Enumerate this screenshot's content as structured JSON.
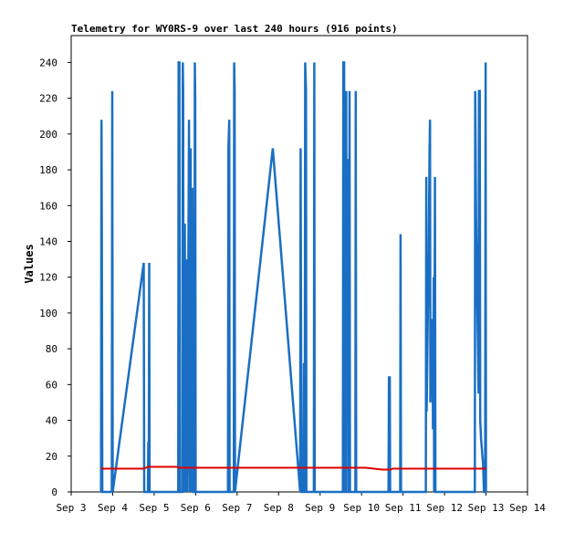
{
  "chart_data": {
    "type": "line",
    "title": "Telemetry for WY0RS-9 over last 240 hours (916 points)",
    "xlabel": "",
    "ylabel": "Values",
    "x_categories": [
      "Sep 3",
      "Sep 4",
      "Sep 5",
      "Sep 6",
      "Sep 7",
      "Sep 8",
      "Sep 9",
      "Sep 10",
      "Sep 11",
      "Sep 12",
      "Sep 13",
      "Sep 14"
    ],
    "xlim": [
      0,
      11
    ],
    "ylim": [
      0,
      255
    ],
    "y_ticks": [
      0,
      20,
      40,
      60,
      80,
      100,
      120,
      140,
      160,
      180,
      200,
      220,
      240
    ],
    "grid": false,
    "legend": "none",
    "series": [
      {
        "color": "#1a6fc4",
        "points": [
          [
            0.72,
            0
          ],
          [
            0.73,
            208
          ],
          [
            0.74,
            145
          ],
          [
            0.75,
            0
          ],
          [
            0.98,
            0
          ],
          [
            0.99,
            224
          ],
          [
            1.0,
            0
          ],
          [
            1.75,
            128
          ],
          [
            1.76,
            0
          ],
          [
            1.85,
            0
          ],
          [
            1.86,
            28
          ],
          [
            1.87,
            0
          ],
          [
            1.88,
            128
          ],
          [
            1.89,
            0
          ],
          [
            2.58,
            0
          ],
          [
            2.59,
            240
          ],
          [
            2.61,
            240
          ],
          [
            2.62,
            0
          ],
          [
            2.68,
            0
          ],
          [
            2.69,
            240
          ],
          [
            2.7,
            224
          ],
          [
            2.71,
            0
          ],
          [
            2.74,
            150
          ],
          [
            2.76,
            0
          ],
          [
            2.78,
            130
          ],
          [
            2.8,
            0
          ],
          [
            2.84,
            208
          ],
          [
            2.86,
            0
          ],
          [
            2.88,
            192
          ],
          [
            2.9,
            0
          ],
          [
            2.92,
            170
          ],
          [
            2.94,
            0
          ],
          [
            2.97,
            0
          ],
          [
            2.98,
            240
          ],
          [
            2.99,
            220
          ],
          [
            3.0,
            0
          ],
          [
            3.78,
            0
          ],
          [
            3.79,
            192
          ],
          [
            3.81,
            208
          ],
          [
            3.82,
            0
          ],
          [
            3.92,
            0
          ],
          [
            3.93,
            240
          ],
          [
            3.94,
            224
          ],
          [
            3.95,
            0
          ],
          [
            4.86,
            192
          ],
          [
            5.52,
            0
          ],
          [
            5.53,
            192
          ],
          [
            5.55,
            0
          ],
          [
            5.6,
            0
          ],
          [
            5.61,
            72
          ],
          [
            5.62,
            0
          ],
          [
            5.63,
            0
          ],
          [
            5.64,
            240
          ],
          [
            5.66,
            224
          ],
          [
            5.67,
            0
          ],
          [
            5.85,
            0
          ],
          [
            5.86,
            240
          ],
          [
            5.87,
            0
          ],
          [
            6.55,
            0
          ],
          [
            6.56,
            240
          ],
          [
            6.58,
            240
          ],
          [
            6.59,
            0
          ],
          [
            6.62,
            0
          ],
          [
            6.63,
            224
          ],
          [
            6.64,
            40
          ],
          [
            6.66,
            112
          ],
          [
            6.67,
            186
          ],
          [
            6.68,
            0
          ],
          [
            6.7,
            0
          ],
          [
            6.71,
            224
          ],
          [
            6.72,
            0
          ],
          [
            6.85,
            0
          ],
          [
            6.86,
            224
          ],
          [
            6.87,
            0
          ],
          [
            7.65,
            0
          ],
          [
            7.66,
            64
          ],
          [
            7.68,
            64
          ],
          [
            7.69,
            0
          ],
          [
            7.93,
            0
          ],
          [
            7.94,
            144
          ],
          [
            7.95,
            0
          ],
          [
            8.55,
            0
          ],
          [
            8.56,
            176
          ],
          [
            8.57,
            45
          ],
          [
            8.6,
            104
          ],
          [
            8.62,
            134
          ],
          [
            8.64,
            192
          ],
          [
            8.65,
            208
          ],
          [
            8.66,
            50
          ],
          [
            8.69,
            96
          ],
          [
            8.71,
            96
          ],
          [
            8.72,
            35
          ],
          [
            8.74,
            120
          ],
          [
            8.75,
            0
          ],
          [
            8.77,
            176
          ],
          [
            8.78,
            0
          ],
          [
            9.73,
            0
          ],
          [
            9.74,
            224
          ],
          [
            9.75,
            190
          ],
          [
            9.76,
            155
          ],
          [
            9.78,
            122
          ],
          [
            9.8,
            88
          ],
          [
            9.82,
            55
          ],
          [
            9.83,
            224
          ],
          [
            9.85,
            224
          ],
          [
            9.86,
            40
          ],
          [
            9.88,
            30
          ],
          [
            9.93,
            15
          ],
          [
            9.95,
            0
          ],
          [
            9.98,
            0
          ],
          [
            9.99,
            240
          ],
          [
            10.0,
            0
          ]
        ]
      },
      {
        "color": "#dd0000",
        "points": [
          [
            0.72,
            13
          ],
          [
            1.75,
            13
          ],
          [
            1.85,
            14
          ],
          [
            2.55,
            14
          ],
          [
            2.6,
            13.5
          ],
          [
            7.1,
            13.5
          ],
          [
            7.5,
            12.5
          ],
          [
            7.7,
            12.5
          ],
          [
            7.75,
            13
          ],
          [
            10.0,
            13
          ]
        ]
      }
    ]
  }
}
